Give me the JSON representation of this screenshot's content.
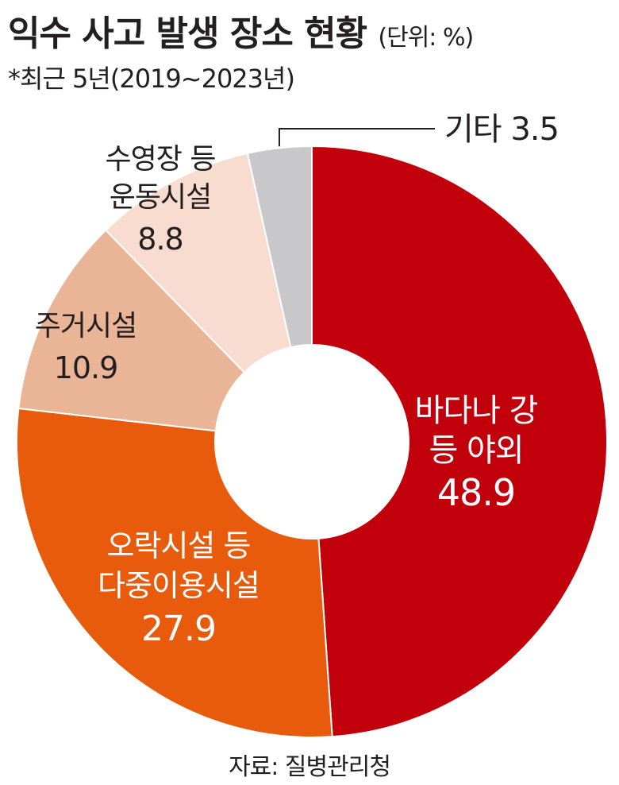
{
  "header": {
    "title": "익수 사고 발생 장소 현황",
    "unit": "(단위: %)",
    "subtitle": "*최근 5년(2019~2023년)"
  },
  "footer": {
    "source": "자료: 질병관리청"
  },
  "chart_data": {
    "type": "pie",
    "style": "donut",
    "unit": "%",
    "slices": [
      {
        "label_lines": [
          "바다나 강",
          "등 야외"
        ],
        "value": 48.9,
        "value_label": "48.9",
        "color": "#c1000b",
        "text_color": "#ffffff"
      },
      {
        "label_lines": [
          "오락시설 등",
          "다중이용시설"
        ],
        "value": 27.9,
        "value_label": "27.9",
        "color": "#e85b0c",
        "text_color": "#ffffff"
      },
      {
        "label_lines": [
          "주거시설"
        ],
        "value": 10.9,
        "value_label": "10.9",
        "color": "#eab597",
        "text_color": "#231f20"
      },
      {
        "label_lines": [
          "수영장 등",
          "운동시설"
        ],
        "value": 8.8,
        "value_label": "8.8",
        "color": "#f8dccf",
        "text_color": "#231f20"
      },
      {
        "label_lines": [
          "기타"
        ],
        "value": 3.5,
        "value_label": "3.5",
        "color": "#c8c8ca",
        "text_color": "#231f20"
      }
    ]
  }
}
